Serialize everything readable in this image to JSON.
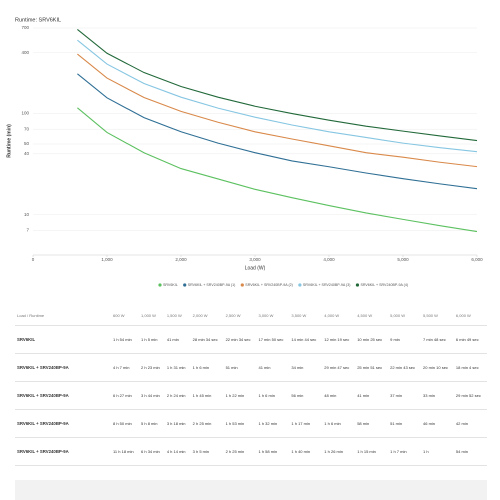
{
  "chart_data": {
    "type": "line",
    "title": "Runtime: SRV6KIL",
    "x_label": "Load (W)",
    "y_label": "Runtime (min)",
    "x": [
      600,
      1000,
      1500,
      2000,
      2500,
      3000,
      3500,
      4000,
      4500,
      5000,
      5500,
      6000
    ],
    "series": [
      {
        "name": "SRV6KIL",
        "color": "#5cc160",
        "values": [
          114,
          65,
          41,
          28.57,
          22.57,
          17.83,
          14.73,
          12.32,
          10.42,
          9,
          7.8,
          6.82
        ]
      },
      {
        "name": "SRV6KIL + SRV240BP-9A (1)",
        "color": "#2f6f95",
        "values": [
          247,
          143,
          91,
          66,
          51,
          41,
          34,
          29.78,
          25.85,
          22.72,
          20.17,
          18.07
        ]
      },
      {
        "name": "SRV6KIL + SRV240BP-9A (2)",
        "color": "#d9894a",
        "values": [
          387,
          224,
          144,
          105,
          82,
          66,
          56,
          48,
          41,
          37,
          33,
          29.87
        ]
      },
      {
        "name": "SRV6KIL + SRV240BP-9A (3)",
        "color": "#86c6e2",
        "values": [
          530,
          308,
          198,
          145,
          113,
          92,
          77,
          66,
          58,
          51,
          46,
          42
        ]
      },
      {
        "name": "SRV6KIL + SRV240BP-9A (4)",
        "color": "#22693a",
        "values": [
          678,
          394,
          254,
          185,
          145,
          118,
          100,
          86,
          75,
          67,
          60,
          54
        ]
      }
    ],
    "xlim": [
      0,
      6000
    ],
    "xticks": [
      0,
      {
        "value": 1000,
        "label": "1,000"
      },
      {
        "value": 2000,
        "label": "2,000"
      },
      {
        "value": 3000,
        "label": "3,000"
      },
      {
        "value": 4000,
        "label": "4,000"
      },
      {
        "value": 5000,
        "label": "5,000"
      },
      {
        "value": 6000,
        "label": "6,000"
      }
    ],
    "ylim": [
      4,
      700
    ],
    "yticks": [
      7,
      10,
      40,
      50,
      70,
      100,
      400,
      700
    ],
    "log_y": true,
    "grid": true
  },
  "table": {
    "header": [
      "Load / Runtime",
      "600 W",
      "1,000 W",
      "1,500 W",
      "2,000 W",
      "2,500 W",
      "3,000 W",
      "3,500 W",
      "4,000 W",
      "4,500 W",
      "5,000 W",
      "5,500 W",
      "6,000 W"
    ],
    "rows": [
      [
        "SRV6KIL",
        "1 h 54 min",
        "1 h 5 min",
        "41 min",
        "28 min 34 sec",
        "22 min 34 sec",
        "17 min 50 sec",
        "14 min 44 sec",
        "12 min 19 sec",
        "10 min 25 sec",
        "9 min",
        "7 min 48 sec",
        "6 min 49 sec"
      ],
      [
        "SRV6KIL + SRV240BP-9A",
        "4 h 7 min",
        "2 h 23 min",
        "1 h 31 min",
        "1 h 6 min",
        "51 min",
        "41 min",
        "34 min",
        "29 min 47 sec",
        "25 min 51 sec",
        "22 min 43 sec",
        "20 min 10 sec",
        "18 min 4 sec"
      ],
      [
        "SRV6KIL + SRV240BP-9A",
        "6 h 27 min",
        "3 h 44 min",
        "2 h 24 min",
        "1 h 45 min",
        "1 h 22 min",
        "1 h 6 min",
        "56 min",
        "48 min",
        "41 min",
        "37 min",
        "33 min",
        "29 min 52 sec"
      ],
      [
        "SRV6KIL + SRV240BP-9A",
        "8 h 50 min",
        "5 h 8 min",
        "3 h 18 min",
        "2 h 25 min",
        "1 h 53 min",
        "1 h 32 min",
        "1 h 17 min",
        "1 h 6 min",
        "58 min",
        "51 min",
        "46 min",
        "42 min"
      ],
      [
        "SRV6KIL + SRV240BP-9A",
        "11 h 18 min",
        "6 h 34 min",
        "4 h 14 min",
        "3 h 5 min",
        "2 h 25 min",
        "1 h 58 min",
        "1 h 40 min",
        "1 h 26 min",
        "1 h 15 min",
        "1 h 7 min",
        "1 h",
        "54 min"
      ]
    ]
  }
}
